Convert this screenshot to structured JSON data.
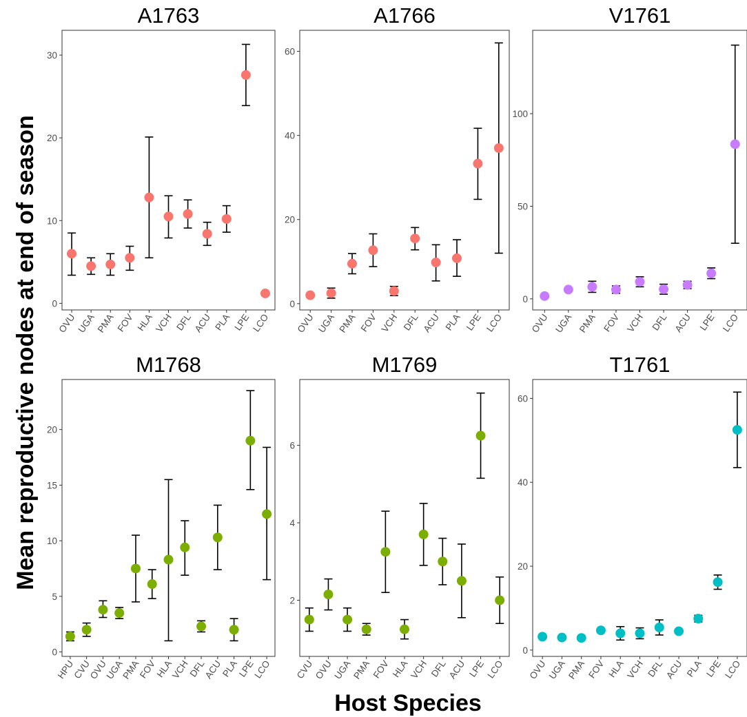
{
  "figure": {
    "ylabel": "Mean reproductive nodes at end of season",
    "xlabel": "Host Species"
  },
  "colors": {
    "A": "#f8766d",
    "V": "#c77cff",
    "M": "#7cae00",
    "T": "#00bfc4"
  },
  "chart_data": [
    {
      "type": "scatter",
      "title": "A1763",
      "ylim": [
        -0.8,
        33
      ],
      "yticks": [
        0,
        10,
        20,
        30
      ],
      "color": "#f8766d",
      "categories": [
        "OVU",
        "UGA",
        "PMA",
        "FOV",
        "HLA",
        "VCH",
        "DFL",
        "ACU",
        "PLA",
        "LPE",
        "LCO"
      ],
      "values": [
        6,
        4.5,
        4.7,
        5.5,
        12.8,
        10.5,
        10.8,
        8.4,
        10.2,
        27.6,
        1.2
      ],
      "lower": [
        3.4,
        3.5,
        3.4,
        4.0,
        5.5,
        7.9,
        9.1,
        7.0,
        8.6,
        23.9,
        null
      ],
      "upper": [
        8.5,
        5.5,
        6.0,
        6.9,
        20.1,
        13.0,
        12.5,
        9.8,
        11.8,
        31.3,
        null
      ]
    },
    {
      "type": "scatter",
      "title": "A1766",
      "ylim": [
        -1.5,
        65
      ],
      "yticks": [
        0,
        20,
        40,
        60
      ],
      "color": "#f8766d",
      "categories": [
        "OVU",
        "UGA",
        "PMA",
        "FOV",
        "VCH",
        "DFL",
        "ACU",
        "PLA",
        "LPE",
        "LCO"
      ],
      "values": [
        2,
        2.5,
        9.5,
        12.7,
        3,
        15.5,
        9.8,
        10.8,
        33.3,
        37
      ],
      "lower": [
        null,
        1.3,
        7.1,
        8.8,
        1.9,
        12.8,
        5.4,
        6.5,
        24.8,
        12
      ],
      "upper": [
        null,
        3.7,
        11.9,
        16.6,
        4.1,
        18.1,
        14.0,
        15.2,
        41.7,
        62
      ]
    },
    {
      "type": "scatter",
      "title": "V1761",
      "ylim": [
        -6,
        145
      ],
      "yticks": [
        0,
        50,
        100
      ],
      "color": "#c77cff",
      "categories": [
        "OVU",
        "UGA",
        "PMA",
        "FOV",
        "VCH",
        "DFL",
        "ACU",
        "LPE",
        "LCO"
      ],
      "values": [
        1.5,
        5,
        6.5,
        5,
        9.2,
        5.2,
        7.5,
        13.8,
        83.5
      ],
      "lower": [
        null,
        null,
        3.5,
        3.0,
        6.5,
        2.5,
        5.5,
        10.9,
        30
      ],
      "upper": [
        null,
        null,
        9.5,
        7.0,
        11.9,
        7.9,
        9.5,
        16.7,
        137
      ]
    },
    {
      "type": "scatter",
      "title": "M1768",
      "ylim": [
        -0.4,
        24.5
      ],
      "yticks": [
        0,
        5,
        10,
        15,
        20
      ],
      "color": "#7cae00",
      "categories": [
        "HPU",
        "CVU",
        "OVU",
        "UGA",
        "PMA",
        "FOV",
        "HLA",
        "VCH",
        "DFL",
        "ACU",
        "PLA",
        "LPE",
        "LCO"
      ],
      "values": [
        1.4,
        2,
        3.8,
        3.5,
        7.5,
        6.1,
        8.3,
        9.4,
        2.3,
        10.3,
        2,
        19,
        12.4
      ],
      "lower": [
        1.0,
        1.4,
        3.1,
        3.0,
        4.5,
        4.8,
        1.0,
        6.9,
        1.8,
        7.4,
        1.0,
        14.6,
        6.5
      ],
      "upper": [
        1.8,
        2.6,
        4.6,
        4.0,
        10.5,
        7.4,
        15.5,
        11.8,
        2.8,
        13.2,
        3.0,
        23.5,
        18.4
      ]
    },
    {
      "type": "scatter",
      "title": "M1769",
      "ylim": [
        0.55,
        7.7
      ],
      "yticks": [
        2,
        4,
        6
      ],
      "color": "#7cae00",
      "categories": [
        "CVU",
        "OVU",
        "UGA",
        "PMA",
        "FOV",
        "HLA",
        "VCH",
        "DFL",
        "ACU",
        "LPE",
        "LCO"
      ],
      "values": [
        1.5,
        2.15,
        1.5,
        1.25,
        3.25,
        1.25,
        3.7,
        3.0,
        2.5,
        6.25,
        2.0
      ],
      "lower": [
        1.2,
        1.75,
        1.2,
        1.1,
        2.2,
        1.0,
        2.9,
        2.4,
        1.55,
        5.15,
        1.4
      ],
      "upper": [
        1.8,
        2.55,
        1.8,
        1.4,
        4.3,
        1.5,
        4.5,
        3.6,
        3.45,
        7.35,
        2.6
      ]
    },
    {
      "type": "scatter",
      "title": "T1761",
      "ylim": [
        -1.5,
        64.5
      ],
      "yticks": [
        0,
        20,
        40,
        60
      ],
      "color": "#00bfc4",
      "categories": [
        "OVU",
        "UGA",
        "PMA",
        "FOV",
        "HLA",
        "VCH",
        "DFL",
        "ACU",
        "PLA",
        "LPE",
        "LCO"
      ],
      "values": [
        3.2,
        3,
        2.9,
        4.7,
        4,
        4,
        5.4,
        4.5,
        7.5,
        16.2,
        52.5
      ],
      "lower": [
        null,
        null,
        null,
        null,
        2.4,
        2.7,
        3.6,
        null,
        6.7,
        14.5,
        43.5
      ],
      "upper": [
        null,
        null,
        null,
        null,
        5.6,
        5.3,
        7.2,
        null,
        8.3,
        17.9,
        61.5
      ]
    }
  ]
}
